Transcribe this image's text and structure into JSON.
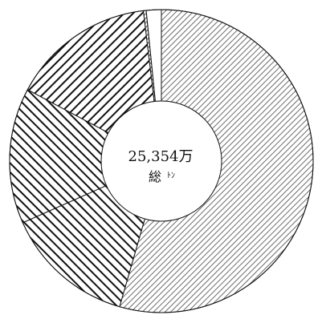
{
  "chart_data": {
    "type": "pie",
    "series": [
      {
        "values": [
          54.5,
          13.9,
          14.5,
          15.3,
          0.3,
          1.6
        ]
      }
    ],
    "center_label": {
      "value": "25,354万",
      "unit": "総",
      "unit_small": "ﾄﾝ"
    },
    "legend": "none",
    "grid": false
  },
  "colors": {
    "background": "#ffffff",
    "stroke": "#111111",
    "hatch_dense": "#6b6b6b",
    "hatch_dark": "#111111"
  },
  "patterns": [
    "dense-diagonal-dots",
    "thick-diagonal-down",
    "thick-diagonal-down",
    "thick-diagonal-up",
    "thin-diagonal-up",
    "blank"
  ]
}
